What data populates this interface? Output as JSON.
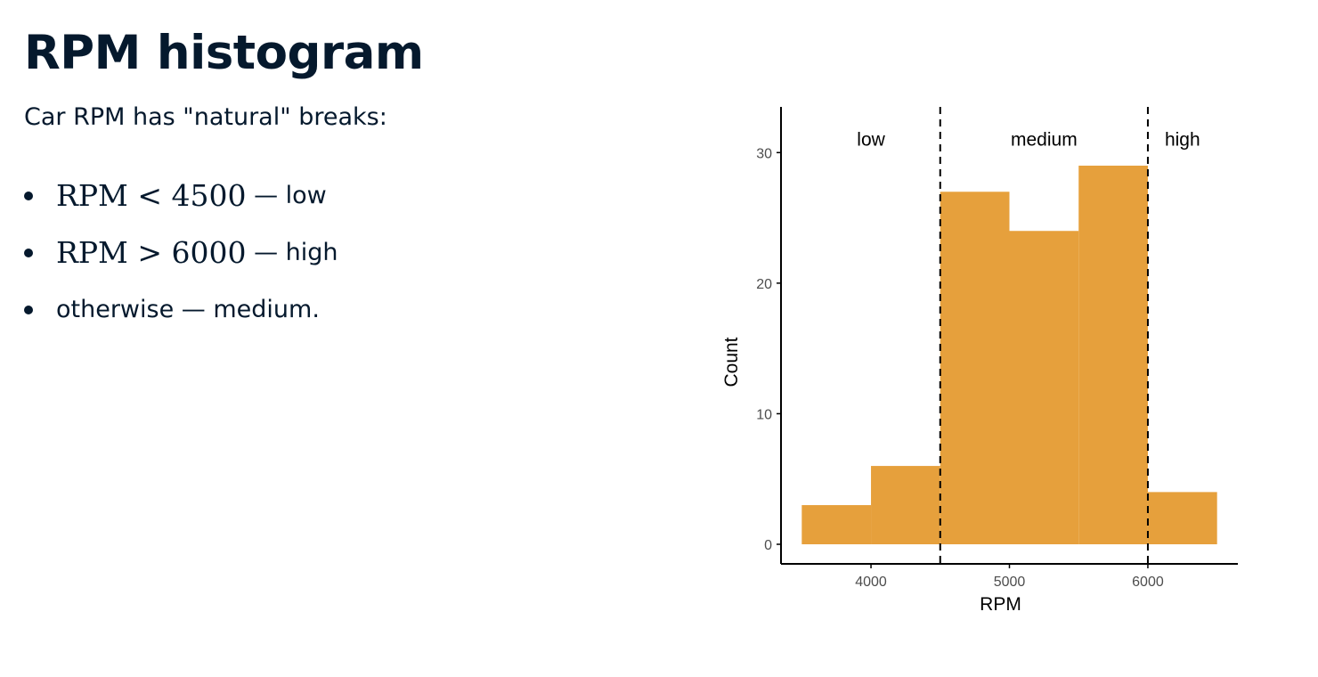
{
  "slide": {
    "title": "RPM histogram",
    "intro": "Car RPM has \"natural\" breaks:",
    "bullets": [
      {
        "math_lhs": "RPM",
        "math_op": "<",
        "math_rhs": "4500",
        "dash": " — ",
        "text": "low"
      },
      {
        "math_lhs": "RPM",
        "math_op": ">",
        "math_rhs": "6000",
        "dash": " — ",
        "text": "high"
      },
      {
        "text": "otherwise — medium."
      }
    ]
  },
  "chart_data": {
    "type": "bar",
    "xlabel": "RPM",
    "ylabel": "Count",
    "xlim": [
      3350,
      6650
    ],
    "ylim": [
      -1.5,
      33.5
    ],
    "x_ticks": [
      4000,
      5000,
      6000
    ],
    "y_ticks": [
      0,
      10,
      20,
      30
    ],
    "bins": [
      {
        "x_start": 3500,
        "x_end": 4000,
        "count": 3
      },
      {
        "x_start": 4000,
        "x_end": 4500,
        "count": 6
      },
      {
        "x_start": 4500,
        "x_end": 5000,
        "count": 27
      },
      {
        "x_start": 5000,
        "x_end": 5500,
        "count": 24
      },
      {
        "x_start": 5500,
        "x_end": 6000,
        "count": 29
      },
      {
        "x_start": 6000,
        "x_end": 6500,
        "count": 4
      }
    ],
    "breaks": [
      4500,
      6000
    ],
    "region_labels": [
      {
        "text": "low",
        "x": 4000
      },
      {
        "text": "medium",
        "x": 5250
      },
      {
        "text": "high",
        "x": 6250
      }
    ],
    "region_label_y": 31,
    "grid": false,
    "legend": "none",
    "colors": {
      "bar": "#e6a03c",
      "axis": "#000000",
      "tick_label": "#4d4d4d",
      "break_line": "#000000"
    }
  }
}
